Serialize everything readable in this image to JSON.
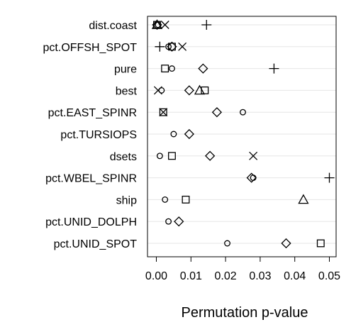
{
  "chart_data": {
    "type": "scatter",
    "title": "",
    "xlabel": "Permutation p-value",
    "ylabel": "",
    "xlim": [
      0,
      0.05
    ],
    "xticks": [
      0.0,
      0.01,
      0.02,
      0.03,
      0.04,
      0.05
    ],
    "xtick_labels": [
      "0.00",
      "0.01",
      "0.02",
      "0.03",
      "0.04",
      "0.05"
    ],
    "grid": true,
    "categories": [
      "dist.coast",
      "pct.OFFSH_SPOT",
      "pure",
      "best",
      "pct.EAST_SPINR",
      "pct.TURSIOPS",
      "dsets",
      "pct.WBEL_SPINR",
      "ship",
      "pct.UNID_DOLPH",
      "pct.UNID_SPOT"
    ],
    "series": [
      {
        "marker": "circle",
        "values": [
          0.0005,
          0.0035,
          0.0045,
          0.0015,
          0.025,
          0.005,
          0.001,
          0.028,
          0.0025,
          0.0035,
          0.0205
        ]
      },
      {
        "marker": "triangle",
        "values": [
          0.0002,
          null,
          null,
          0.0125,
          null,
          null,
          null,
          null,
          0.0425,
          null,
          null
        ]
      },
      {
        "marker": "plus",
        "values": [
          0.0145,
          0.001,
          0.034,
          null,
          null,
          null,
          null,
          0.05,
          null,
          null,
          null
        ]
      },
      {
        "marker": "cross",
        "values": [
          0.0025,
          0.0075,
          null,
          0.0005,
          0.002,
          null,
          0.028,
          null,
          null,
          null,
          null
        ]
      },
      {
        "marker": "diamond",
        "values": [
          0.0002,
          0.0045,
          0.0135,
          0.0095,
          0.0175,
          0.0095,
          0.0155,
          0.0275,
          null,
          0.0065,
          0.0375
        ]
      },
      {
        "marker": "square",
        "values": [
          0.0002,
          0.0045,
          0.0025,
          0.014,
          0.002,
          null,
          0.0045,
          null,
          0.0085,
          null,
          0.0475
        ]
      }
    ]
  }
}
